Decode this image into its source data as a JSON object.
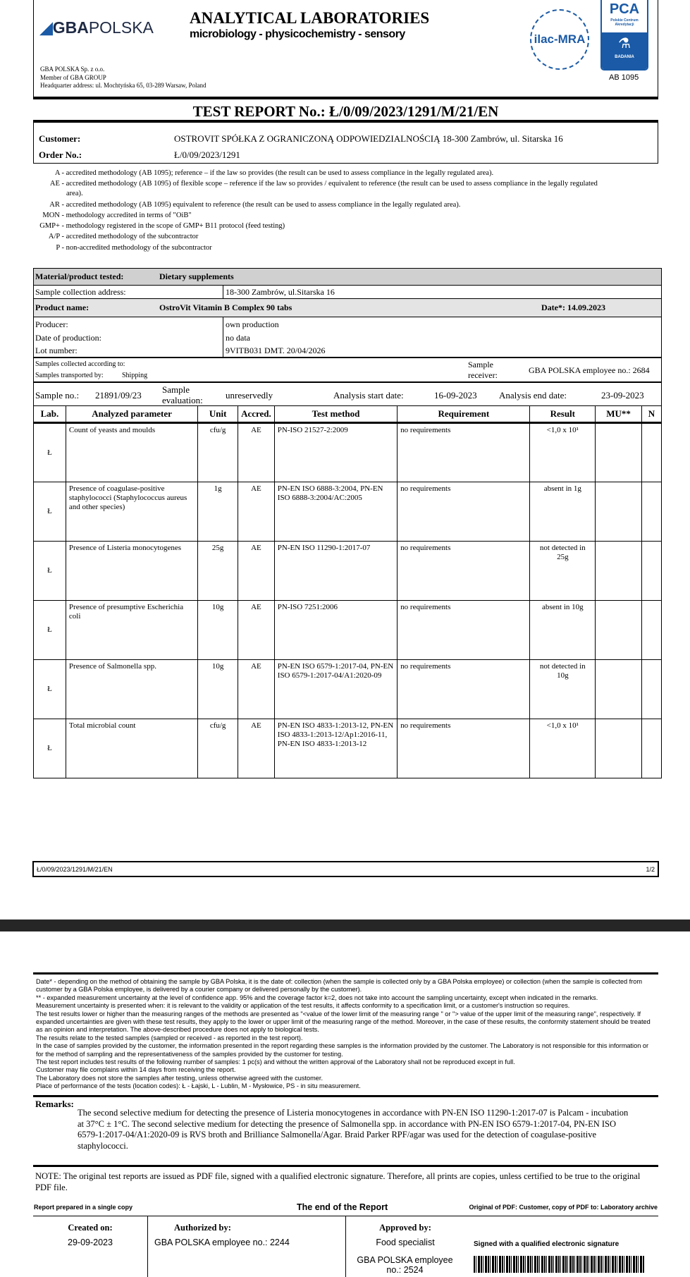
{
  "header": {
    "logo_text_bold": "GBA",
    "logo_text_light": "POLSKA",
    "lab_title": "ANALYTICAL LABORATORIES",
    "lab_subtitle": "microbiology  - physicochemistry  - sensory",
    "company_lines": [
      "GBA POLSKA Sp. z o.o.",
      "Member of GBA GROUP",
      "Headquarter address: ul. Mochtyńska 65, 03-289 Warsaw, Poland"
    ],
    "ilac_logo": "ilac-MRA",
    "pca_logo": "PCA",
    "pca_sub": "Polskie Centrum Akredytacji",
    "pca_badania": "BADANIA",
    "accreditation": "AB 1095"
  },
  "report_title": "TEST REPORT No.: Ł/0/09/2023/1291/M/21/EN",
  "customer": {
    "customer_label": "Customer:",
    "customer_value": "OSTROVIT SPÓŁKA Z OGRANICZONĄ ODPOWIEDZIALNOŚCIĄ 18-300 Zambrów, ul. Sitarska 16",
    "order_label": "Order No.:",
    "order_value": "Ł/0/09/2023/1291"
  },
  "legend": [
    {
      "code": "A -",
      "text": "accredited methodology (AB 1095); reference – if the law so provides (the result can be used to assess compliance in the legally regulated area)."
    },
    {
      "code": "AE -",
      "text": "accredited methodology (AB 1095) of flexible scope – reference if the law so provides / equivalent to reference (the result can be used to assess compliance in the legally regulated",
      "text2": "area)."
    },
    {
      "code": "AR -",
      "text": "accredited methodology (AB 1095) equivalent to reference (the result can be used to assess compliance in the legally regulated area)."
    },
    {
      "code": "MON -",
      "text": "methodology accredited in terms of \"OiB\""
    },
    {
      "code": "GMP+ -",
      "text": "methodology registered in the scope of GMP+ B11 protocol (feed testing)"
    },
    {
      "code": "A/P -",
      "text": "accredited methodology of the subcontractor"
    },
    {
      "code": "P -",
      "text": "non-accredited methodology of the subcontractor"
    }
  ],
  "sample": {
    "material_label": "Material/product tested:",
    "material_value": "Dietary supplements",
    "address_label": "Sample collection address:",
    "address_value": "18-300 Zambrów, ul.Sitarska 16",
    "product_label": "Product name:",
    "product_value": "OstroVit Vitamin B Complex 90 tabs",
    "date_label": "Date*:  14.09.2023",
    "producer_label": "Producer:",
    "producer_value": "own production",
    "prod_date_label": "Date of production:",
    "prod_date_value": "no data",
    "lot_label": "Lot number:",
    "lot_value": "9VITB031 DMT. 20/04/2026",
    "collected_label": "Samples collected according to:",
    "transported_label": "Samples transported by:",
    "transported_value": "Shipping",
    "receiver_label1": "Sample",
    "receiver_label2": "receiver:",
    "receiver_value": "GBA POLSKA employee no.: 2684",
    "sample_no_label": "Sample no.:",
    "sample_no_value": "21891/09/23",
    "eval_label1": "Sample",
    "eval_label2": "evaluation:",
    "eval_value": "unreservedly",
    "start_label": "Analysis start date:",
    "start_value": "16-09-2023",
    "end_label": "Analysis end date:",
    "end_value": "23-09-2023"
  },
  "results": {
    "columns": [
      "Lab.",
      "Analyzed parameter",
      "Unit",
      "Accred.",
      "Test method",
      "Requirement",
      "Result",
      "MU**",
      "N"
    ],
    "rows": [
      {
        "lab": "Ł",
        "param": "Count of yeasts and moulds",
        "unit": "cfu/g",
        "accred": "AE",
        "method": "PN-ISO 21527-2:2009",
        "req": "no requirements",
        "result": "<1,0 x 10¹",
        "mu": "",
        "n": ""
      },
      {
        "lab": "Ł",
        "param": "Presence of coagulase-positive staphylococci (Staphylococcus aureus and other species)",
        "unit": "1g",
        "accred": "AE",
        "method": "PN-EN ISO 6888-3:2004, PN-EN ISO 6888-3:2004/AC:2005",
        "req": "no requirements",
        "result": "absent in 1g",
        "mu": "",
        "n": ""
      },
      {
        "lab": "Ł",
        "param": "Presence of Listeria monocytogenes",
        "unit": "25g",
        "accred": "AE",
        "method": "PN-EN ISO 11290-1:2017-07",
        "req": "no requirements",
        "result": "not detected in 25g",
        "mu": "",
        "n": ""
      },
      {
        "lab": "Ł",
        "param": "Presence of presumptive Escherichia coli",
        "unit": "10g",
        "accred": "AE",
        "method": "PN-ISO 7251:2006",
        "req": "no requirements",
        "result": "absent in 10g",
        "mu": "",
        "n": ""
      },
      {
        "lab": "Ł",
        "param": "Presence of Salmonella spp.",
        "unit": "10g",
        "accred": "AE",
        "method": "PN-EN ISO 6579-1:2017-04, PN-EN ISO 6579-1:2017-04/A1:2020-09",
        "req": "no requirements",
        "result": "not detected in 10g",
        "mu": "",
        "n": ""
      },
      {
        "lab": "Ł",
        "param": "Total microbial count",
        "unit": "cfu/g",
        "accred": "AE",
        "method": "PN-EN ISO 4833-1:2013-12, PN-EN ISO 4833-1:2013-12/Ap1:2016-11, PN-EN ISO 4833-1:2013-12",
        "req": "no requirements",
        "result": "<1,0 x 10¹",
        "mu": "",
        "n": ""
      }
    ]
  },
  "page_footer": {
    "report_no": "Ł/0/09/2023/1291/M/21/EN",
    "page": "1/2"
  },
  "footnotes": [
    "Date* - depending on the method of obtaining the sample by GBA Polska, it is the date of: collection (when the sample is collected only by a GBA Polska employee) or collection (when the sample is collected from customer by a GBA Polska employee, is delivered by a courier company or delivered personally by the customer).",
    "** - expanded measurement uncertainty at the level of confidence app. 95% and the coverage factor k=2, does not take into account the sampling uncertainty, except when indicated in the remarks.",
    "Measurement uncertainty is presented when: it is relevant to the validity or application of the test results, it affects conformity to a specification limit, or a customer's instruction so requires.",
    "The test results lower or higher than the measuring ranges of the methods are presented as \"<value of the lower limit of the measuring range \" or \"> value of the upper limit of the measuring range\", respectively. If expanded uncertainties are given with these test results, they apply to the lower or upper limit of the measuring range of the method. Moreover, in the case of these results, the conformity statement should be treated as an opinion and interpretation. The above-described procedure does not apply to biological tests.",
    "The results relate to the tested samples (sampled or received - as reported in the test report).",
    "In the case of samples provided by the customer, the information presented in the report regarding these samples is the information provided by the customer. The Laboratory is not responsible for this information or for the method of sampling and the representativeness of the samples provided by the customer for testing.",
    "The test report includes test results of the following number of samples: 1 pc(s) and without the written approval of the Laboratory shall not be reproduced except in full.",
    "Customer may file complains within 14 days from receiving the report.",
    "The Laboratory does not store the samples after testing, unless otherwise agreed with the customer.",
    "Place of performance of the tests (location codes): Ł - Łajski, L - Lublin, M - Mysłowice, PS - in situ measurement."
  ],
  "remarks": {
    "label": "Remarks:",
    "text": "The second selective medium for detecting the presence of Listeria monocytogenes in accordance with PN-EN ISO 11290-1:2017-07 is Palcam - incubation at 37°C ± 1°C. The second selective medium for detecting the presence of Salmonella spp. in accordance with PN-EN ISO 6579-1:2017-04, PN-EN ISO 6579-1:2017-04/A1:2020-09 is RVS broth and Brilliance Salmonella/Agar. Braid Parker RPF/agar was used for the detection of coagulase-positive staphylococci."
  },
  "note": "NOTE: The original test reports are issued as PDF file, signed with a qualified electronic signature. Therefore, all prints are copies, unless certified to be true to the original PDF file.",
  "end": {
    "single_copy": "Report prepared in a single copy",
    "end_text": "The end of the Report",
    "original": "Original of PDF: Customer, copy of PDF to: Laboratory archive"
  },
  "signatures": {
    "created_label": "Created on:",
    "created_value": "29-09-2023",
    "authorized_label": "Authorized by:",
    "authorized_value": "GBA POLSKA employee no.: 2244",
    "approved_label": "Approved by:",
    "approved_role": "Food specialist",
    "approved_value": "GBA POLSKA employee no.: 2524",
    "signed_text": "Signed with a qualified electronic signature"
  },
  "colors": {
    "logo_blue": "#1a5aa6",
    "header_gray": "#d0d0d0",
    "dark_bar": "#262626"
  }
}
